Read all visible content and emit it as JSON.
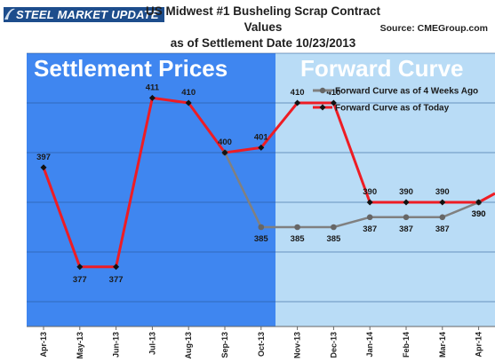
{
  "header": {
    "logo_text": "STEEL MARKET UPDATE",
    "title_line1": "US Midwest #1 Busheling Scrap Contract Values",
    "title_line2": "as of Settlement Date 10/23/2013",
    "source": "Source: CMEGroup.com"
  },
  "panels": {
    "left_title": "Settlement Prices",
    "right_title": "Forward Curve"
  },
  "colors": {
    "left_panel": "#3f86f0",
    "right_panel": "#b9dcf6",
    "series_today": "#ee1c24",
    "series_4wk": "#808080",
    "marker": "#111111"
  },
  "chart_data": {
    "type": "line",
    "categories": [
      "Apr-13",
      "May-13",
      "Jun-13",
      "Jul-13",
      "Aug-13",
      "Sep-13",
      "Oct-13",
      "Nov-13",
      "Dec-13",
      "Jan-14",
      "Feb-14",
      "Mar-14",
      "Apr-14"
    ],
    "ylim": [
      365,
      420
    ],
    "grid": true,
    "legend_position": "top-right",
    "series": [
      {
        "name": "Forward Curve as of 4 Weeks Ago",
        "values": [
          null,
          null,
          null,
          null,
          null,
          400,
          385,
          385,
          385,
          387,
          387,
          387,
          390
        ],
        "labels": [
          null,
          null,
          null,
          null,
          null,
          null,
          "385",
          "385",
          "385",
          "387",
          "387",
          "387",
          "390"
        ]
      },
      {
        "name": "Forward Curve as of Today",
        "values": [
          397,
          377,
          377,
          411,
          410,
          400,
          401,
          410,
          410,
          390,
          390,
          390,
          390
        ],
        "labels": [
          "397",
          "377",
          "377",
          "411",
          "410",
          "400",
          "401",
          "410",
          "410",
          "390",
          "390",
          "390",
          "390"
        ]
      }
    ]
  }
}
